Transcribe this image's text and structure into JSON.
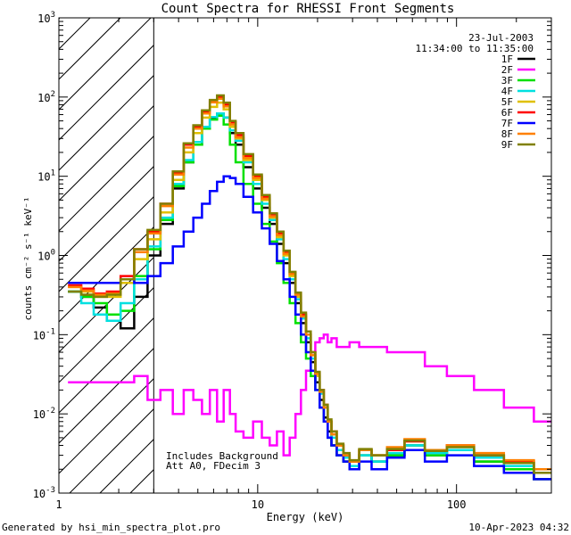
{
  "chart_data": {
    "type": "line",
    "title": "Count Spectra for RHESSI Front Segments",
    "xlabel": "Energy (keV)",
    "ylabel": "counts cm⁻² s⁻¹ keV⁻¹",
    "xscale": "log",
    "yscale": "log",
    "xlim": [
      1,
      300
    ],
    "ylim": [
      0.001,
      1000
    ],
    "x_ticks": [
      {
        "value": 1,
        "label": "1"
      },
      {
        "value": 10,
        "label": "10"
      },
      {
        "value": 100,
        "label": "100"
      }
    ],
    "y_ticks": [
      {
        "value": 0.001,
        "base": "10",
        "exp": "-3"
      },
      {
        "value": 0.01,
        "base": "10",
        "exp": "-2"
      },
      {
        "value": 0.1,
        "base": "10",
        "exp": "-1"
      },
      {
        "value": 1,
        "base": "10",
        "exp": "0"
      },
      {
        "value": 10,
        "base": "10",
        "exp": "1"
      },
      {
        "value": 100,
        "base": "10",
        "exp": "2"
      },
      {
        "value": 1000,
        "base": "10",
        "exp": "3"
      }
    ],
    "hatched_region": [
      1,
      3
    ],
    "date": "23-Jul-2003",
    "time_range": "11:34:00 to 11:35:00",
    "annotation_lines": [
      "Includes Background",
      "Att A0, FDecim 3"
    ],
    "series": [
      {
        "name": "1F",
        "color": "#000000",
        "x": [
          1.2,
          1.4,
          1.6,
          1.9,
          2.2,
          2.6,
          3.0,
          3.5,
          4.0,
          4.5,
          5.0,
          5.5,
          6.0,
          6.5,
          7.0,
          7.5,
          8.0,
          9.0,
          10.0,
          11.0,
          12.0,
          13.0,
          14.0,
          15.0,
          16.0,
          17.0,
          18.0,
          19.0,
          20.0,
          21.0,
          22.0,
          23.0,
          24.0,
          26.0,
          28.0,
          30.0,
          35.0,
          40.0,
          50.0,
          60.0,
          80.0,
          100.0,
          150.0,
          200.0,
          300.0
        ],
        "y": [
          0.35,
          0.3,
          0.22,
          0.15,
          0.12,
          0.3,
          1.0,
          2.5,
          7.0,
          15.0,
          25.0,
          40.0,
          55.0,
          62.0,
          55.0,
          35.0,
          25.0,
          13.0,
          7.0,
          4.0,
          2.5,
          1.4,
          0.8,
          0.45,
          0.25,
          0.14,
          0.08,
          0.045,
          0.025,
          0.015,
          0.009,
          0.006,
          0.004,
          0.003,
          0.0025,
          0.002,
          0.003,
          0.0025,
          0.003,
          0.004,
          0.003,
          0.0035,
          0.0025,
          0.002,
          0.0015
        ]
      },
      {
        "name": "2F",
        "color": "#ff00ff",
        "x": [
          1.2,
          1.4,
          1.6,
          1.9,
          2.2,
          2.6,
          3.0,
          3.5,
          4.0,
          4.5,
          5.0,
          5.5,
          6.0,
          6.5,
          7.0,
          7.5,
          8.0,
          9.0,
          10.0,
          11.0,
          12.0,
          13.0,
          14.0,
          15.0,
          16.0,
          17.0,
          18.0,
          19.0,
          20.0,
          21.0,
          22.0,
          23.0,
          24.0,
          26.0,
          28.0,
          30.0,
          35.0,
          40.0,
          50.0,
          60.0,
          80.0,
          100.0,
          150.0,
          200.0,
          300.0
        ],
        "y": [
          0.025,
          0.025,
          0.025,
          0.025,
          0.025,
          0.03,
          0.015,
          0.02,
          0.01,
          0.02,
          0.015,
          0.01,
          0.02,
          0.008,
          0.02,
          0.01,
          0.006,
          0.005,
          0.008,
          0.005,
          0.004,
          0.006,
          0.003,
          0.005,
          0.01,
          0.02,
          0.035,
          0.06,
          0.08,
          0.09,
          0.1,
          0.08,
          0.09,
          0.07,
          0.07,
          0.08,
          0.07,
          0.07,
          0.06,
          0.06,
          0.04,
          0.03,
          0.02,
          0.012,
          0.008
        ]
      },
      {
        "name": "3F",
        "color": "#00e000",
        "x": [
          1.2,
          1.4,
          1.6,
          1.9,
          2.2,
          2.6,
          3.0,
          3.5,
          4.0,
          4.5,
          5.0,
          5.5,
          6.0,
          6.5,
          7.0,
          7.5,
          8.0,
          9.0,
          10.0,
          11.0,
          12.0,
          13.0,
          14.0,
          15.0,
          16.0,
          17.0,
          18.0,
          19.0,
          20.0,
          21.0,
          22.0,
          23.0,
          24.0,
          26.0,
          28.0,
          30.0,
          35.0,
          40.0,
          50.0,
          60.0,
          80.0,
          100.0,
          150.0,
          200.0,
          300.0
        ],
        "y": [
          0.35,
          0.3,
          0.25,
          0.18,
          0.2,
          0.55,
          1.2,
          2.8,
          7.5,
          15.0,
          25.0,
          40.0,
          52.0,
          58.0,
          45.0,
          25.0,
          15.0,
          8.0,
          4.5,
          2.5,
          1.5,
          0.8,
          0.45,
          0.25,
          0.14,
          0.08,
          0.05,
          0.03,
          0.02,
          0.012,
          0.008,
          0.005,
          0.004,
          0.003,
          0.0025,
          0.002,
          0.003,
          0.0025,
          0.003,
          0.004,
          0.003,
          0.0035,
          0.0025,
          0.002,
          0.0015
        ]
      },
      {
        "name": "4F",
        "color": "#00e0e0",
        "x": [
          1.2,
          1.4,
          1.6,
          1.9,
          2.2,
          2.6,
          3.0,
          3.5,
          4.0,
          4.5,
          5.0,
          5.5,
          6.0,
          6.5,
          7.0,
          7.5,
          8.0,
          9.0,
          10.0,
          11.0,
          12.0,
          13.0,
          14.0,
          15.0,
          16.0,
          17.0,
          18.0,
          19.0,
          20.0,
          21.0,
          22.0,
          23.0,
          24.0,
          26.0,
          28.0,
          30.0,
          35.0,
          40.0,
          50.0,
          60.0,
          80.0,
          100.0,
          150.0,
          200.0,
          300.0
        ],
        "y": [
          0.35,
          0.25,
          0.18,
          0.15,
          0.25,
          0.5,
          1.3,
          3.0,
          8.0,
          16.0,
          27.0,
          42.0,
          56.0,
          62.0,
          55.0,
          38.0,
          28.0,
          15.0,
          8.0,
          4.5,
          2.8,
          1.6,
          0.9,
          0.5,
          0.28,
          0.16,
          0.09,
          0.05,
          0.03,
          0.018,
          0.012,
          0.008,
          0.005,
          0.0035,
          0.0028,
          0.0022,
          0.003,
          0.0025,
          0.0032,
          0.004,
          0.0032,
          0.0035,
          0.0028,
          0.0022,
          0.0018
        ]
      },
      {
        "name": "5F",
        "color": "#e0c000",
        "x": [
          1.2,
          1.4,
          1.6,
          1.9,
          2.2,
          2.6,
          3.0,
          3.5,
          4.0,
          4.5,
          5.0,
          5.5,
          6.0,
          6.5,
          7.0,
          7.5,
          8.0,
          9.0,
          10.0,
          11.0,
          12.0,
          13.0,
          14.0,
          15.0,
          16.0,
          17.0,
          18.0,
          19.0,
          20.0,
          21.0,
          22.0,
          23.0,
          24.0,
          26.0,
          28.0,
          30.0,
          35.0,
          40.0,
          50.0,
          60.0,
          80.0,
          100.0,
          150.0,
          200.0,
          300.0
        ],
        "y": [
          0.4,
          0.35,
          0.3,
          0.3,
          0.45,
          0.9,
          1.6,
          3.5,
          9.0,
          20.0,
          35.0,
          55.0,
          75.0,
          85.0,
          70.0,
          42.0,
          30.0,
          16.0,
          9.0,
          5.0,
          3.0,
          1.7,
          1.0,
          0.55,
          0.3,
          0.17,
          0.1,
          0.055,
          0.03,
          0.02,
          0.013,
          0.008,
          0.006,
          0.004,
          0.003,
          0.0025,
          0.0035,
          0.003,
          0.0035,
          0.0045,
          0.0035,
          0.004,
          0.003,
          0.0025,
          0.002
        ]
      },
      {
        "name": "6F",
        "color": "#ff0000",
        "x": [
          1.2,
          1.4,
          1.6,
          1.9,
          2.2,
          2.6,
          3.0,
          3.5,
          4.0,
          4.5,
          5.0,
          5.5,
          6.0,
          6.5,
          7.0,
          7.5,
          8.0,
          9.0,
          10.0,
          11.0,
          12.0,
          13.0,
          14.0,
          15.0,
          16.0,
          17.0,
          18.0,
          19.0,
          20.0,
          21.0,
          22.0,
          23.0,
          24.0,
          26.0,
          28.0,
          30.0,
          35.0,
          40.0,
          50.0,
          60.0,
          80.0,
          100.0,
          150.0,
          200.0,
          300.0
        ],
        "y": [
          0.42,
          0.38,
          0.33,
          0.35,
          0.55,
          1.2,
          2.0,
          4.5,
          11.0,
          25.0,
          42.0,
          65.0,
          90.0,
          100.0,
          80.0,
          48.0,
          33.0,
          18.0,
          10.0,
          5.5,
          3.3,
          1.9,
          1.1,
          0.6,
          0.33,
          0.18,
          0.1,
          0.06,
          0.033,
          0.02,
          0.013,
          0.008,
          0.006,
          0.004,
          0.003,
          0.0025,
          0.0035,
          0.003,
          0.0035,
          0.0045,
          0.0035,
          0.004,
          0.003,
          0.0025,
          0.002
        ]
      },
      {
        "name": "7F",
        "color": "#0000ff",
        "x": [
          1.2,
          1.4,
          1.6,
          1.9,
          2.2,
          2.6,
          3.0,
          3.5,
          4.0,
          4.5,
          5.0,
          5.5,
          6.0,
          6.5,
          7.0,
          7.5,
          8.0,
          9.0,
          10.0,
          11.0,
          12.0,
          13.0,
          14.0,
          15.0,
          16.0,
          17.0,
          18.0,
          19.0,
          20.0,
          21.0,
          22.0,
          23.0,
          24.0,
          26.0,
          28.0,
          30.0,
          35.0,
          40.0,
          50.0,
          60.0,
          80.0,
          100.0,
          150.0,
          200.0,
          300.0
        ],
        "y": [
          0.45,
          0.45,
          0.45,
          0.45,
          0.5,
          0.45,
          0.55,
          0.8,
          1.3,
          2.0,
          3.0,
          4.5,
          6.5,
          8.5,
          10.0,
          9.5,
          8.0,
          5.5,
          3.5,
          2.2,
          1.4,
          0.85,
          0.5,
          0.3,
          0.18,
          0.1,
          0.06,
          0.035,
          0.02,
          0.012,
          0.008,
          0.005,
          0.004,
          0.003,
          0.0025,
          0.002,
          0.0025,
          0.002,
          0.0028,
          0.0035,
          0.0025,
          0.003,
          0.0022,
          0.0018,
          0.0015
        ]
      },
      {
        "name": "8F",
        "color": "#ff8000",
        "x": [
          1.2,
          1.4,
          1.6,
          1.9,
          2.2,
          2.6,
          3.0,
          3.5,
          4.0,
          4.5,
          5.0,
          5.5,
          6.0,
          6.5,
          7.0,
          7.5,
          8.0,
          9.0,
          10.0,
          11.0,
          12.0,
          13.0,
          14.0,
          15.0,
          16.0,
          17.0,
          18.0,
          19.0,
          20.0,
          21.0,
          22.0,
          23.0,
          24.0,
          26.0,
          28.0,
          30.0,
          35.0,
          40.0,
          50.0,
          60.0,
          80.0,
          100.0,
          150.0,
          200.0,
          300.0
        ],
        "y": [
          0.4,
          0.36,
          0.32,
          0.33,
          0.5,
          1.1,
          1.9,
          4.2,
          10.5,
          23.0,
          40.0,
          62.0,
          86.0,
          95.0,
          76.0,
          45.0,
          31.0,
          17.0,
          9.5,
          5.2,
          3.1,
          1.8,
          1.05,
          0.58,
          0.32,
          0.17,
          0.1,
          0.055,
          0.032,
          0.019,
          0.012,
          0.008,
          0.0055,
          0.004,
          0.003,
          0.0025,
          0.0035,
          0.003,
          0.0038,
          0.0048,
          0.0035,
          0.004,
          0.0032,
          0.0026,
          0.002
        ]
      },
      {
        "name": "9F",
        "color": "#808000",
        "x": [
          1.2,
          1.4,
          1.6,
          1.9,
          2.2,
          2.6,
          3.0,
          3.5,
          4.0,
          4.5,
          5.0,
          5.5,
          6.0,
          6.5,
          7.0,
          7.5,
          8.0,
          9.0,
          10.0,
          11.0,
          12.0,
          13.0,
          14.0,
          15.0,
          16.0,
          17.0,
          18.0,
          19.0,
          20.0,
          21.0,
          22.0,
          23.0,
          24.0,
          26.0,
          28.0,
          30.0,
          35.0,
          40.0,
          50.0,
          60.0,
          80.0,
          100.0,
          150.0,
          200.0,
          300.0
        ],
        "y": [
          0.35,
          0.32,
          0.3,
          0.32,
          0.5,
          1.2,
          2.1,
          4.5,
          11.5,
          26.0,
          44.0,
          68.0,
          92.0,
          105.0,
          85.0,
          50.0,
          35.0,
          19.0,
          10.5,
          5.8,
          3.4,
          2.0,
          1.15,
          0.62,
          0.34,
          0.19,
          0.11,
          0.06,
          0.034,
          0.02,
          0.013,
          0.0085,
          0.006,
          0.0042,
          0.0032,
          0.0026,
          0.0036,
          0.003,
          0.0036,
          0.0046,
          0.0034,
          0.0038,
          0.003,
          0.0024,
          0.0018
        ]
      }
    ]
  },
  "footer": {
    "generated_by": "Generated by hsi_min_spectra_plot.pro",
    "timestamp": "10-Apr-2023 04:32"
  }
}
